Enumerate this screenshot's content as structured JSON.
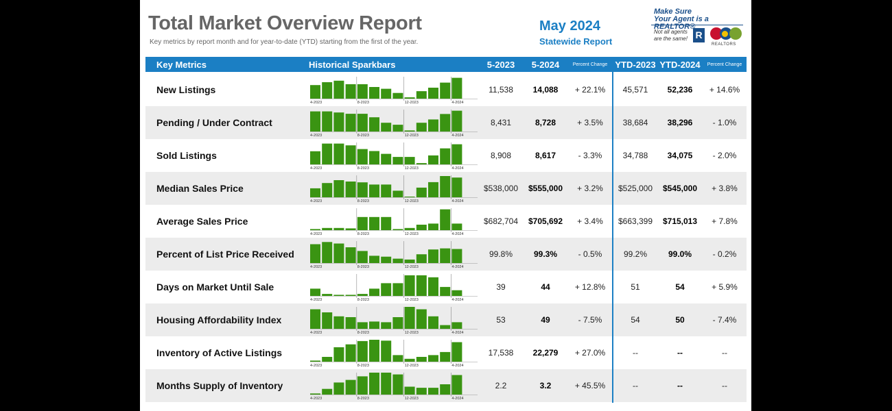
{
  "report": {
    "title": "Total Market Overview Report",
    "subtitle": "Key metrics by report month and for year-to-date (YTD) starting from the first of the year.",
    "month": "May 2024",
    "scope": "Statewide Report"
  },
  "logo": {
    "line1": "Make Sure",
    "line2": "Your Agent is a REALTOR®",
    "line3": "Not all agents",
    "line4": "are the same!",
    "badge": "R",
    "realtors": "REALTORS"
  },
  "header": {
    "metrics": "Key Metrics",
    "sparkbars": "Historical Sparkbars",
    "col1": "5-2023",
    "col2": "5-2024",
    "col3": "Percent Change",
    "col4": "YTD-2023",
    "col5": "YTD-2024",
    "col6": "Percent Change"
  },
  "spark_labels": [
    "4-2023",
    "8-2023",
    "12-2023",
    "4-2024"
  ],
  "colors": {
    "accent": "#1b7fc4",
    "bar": "#3a9412",
    "row_alt": "#ececec"
  },
  "rows": [
    {
      "name": "New Listings",
      "c1": "11,538",
      "c2": "14,088",
      "c3": "+ 22.1%",
      "c4": "45,571",
      "c5": "52,236",
      "c6": "+ 14.6%",
      "bars": [
        0.62,
        0.75,
        0.82,
        0.66,
        0.66,
        0.53,
        0.45,
        0.26,
        0.06,
        0.34,
        0.5,
        0.73,
        0.95
      ]
    },
    {
      "name": "Pending / Under Contract",
      "c1": "8,431",
      "c2": "8,728",
      "c3": "+ 3.5%",
      "c4": "38,684",
      "c5": "38,296",
      "c6": "- 1.0%",
      "bars": [
        0.92,
        0.92,
        0.87,
        0.81,
        0.81,
        0.65,
        0.4,
        0.31,
        0.05,
        0.4,
        0.55,
        0.8,
        0.95
      ]
    },
    {
      "name": "Sold Listings",
      "c1": "8,908",
      "c2": "8,617",
      "c3": "- 3.3%",
      "c4": "34,788",
      "c5": "34,075",
      "c6": "- 2.0%",
      "bars": [
        0.6,
        0.95,
        0.95,
        0.87,
        0.7,
        0.61,
        0.48,
        0.34,
        0.34,
        0.06,
        0.41,
        0.73,
        0.92
      ]
    },
    {
      "name": "Median Sales Price",
      "c1": "$538,000",
      "c2": "$555,000",
      "c3": "+ 3.2%",
      "c4": "$525,000",
      "c5": "$545,000",
      "c6": "+ 3.8%",
      "bars": [
        0.41,
        0.65,
        0.78,
        0.72,
        0.68,
        0.58,
        0.58,
        0.3,
        0.03,
        0.44,
        0.69,
        0.97,
        0.9
      ]
    },
    {
      "name": "Average Sales Price",
      "c1": "$682,704",
      "c2": "$705,692",
      "c3": "+ 3.4%",
      "c4": "$663,399",
      "c5": "$715,013",
      "c6": "+ 7.8%",
      "bars": [
        0.05,
        0.1,
        0.1,
        0.08,
        0.6,
        0.6,
        0.6,
        0.05,
        0.1,
        0.25,
        0.3,
        0.95,
        0.3
      ]
    },
    {
      "name": "Percent of List Price Received",
      "c1": "99.8%",
      "c2": "99.3%",
      "c3": "- 0.5%",
      "c4": "99.2%",
      "c5": "99.0%",
      "c6": "- 0.2%",
      "bars": [
        0.86,
        0.96,
        0.89,
        0.72,
        0.55,
        0.33,
        0.29,
        0.2,
        0.16,
        0.4,
        0.62,
        0.67,
        0.64
      ]
    },
    {
      "name": "Days on Market Until Sale",
      "c1": "39",
      "c2": "44",
      "c3": "+ 12.8%",
      "c4": "51",
      "c5": "54",
      "c6": "+ 5.9%",
      "bars": [
        0.33,
        0.09,
        0.05,
        0.05,
        0.09,
        0.33,
        0.58,
        0.58,
        0.94,
        0.94,
        0.85,
        0.41,
        0.26
      ]
    },
    {
      "name": "Housing Affordability Index",
      "c1": "53",
      "c2": "49",
      "c3": "- 7.5%",
      "c4": "54",
      "c5": "50",
      "c6": "- 7.4%",
      "bars": [
        0.89,
        0.75,
        0.57,
        0.53,
        0.3,
        0.33,
        0.3,
        0.53,
        1.0,
        0.89,
        0.57,
        0.17,
        0.3
      ]
    },
    {
      "name": "Inventory of Active Listings",
      "c1": "17,538",
      "c2": "22,279",
      "c3": "+ 27.0%",
      "c4": "--",
      "c5": "--",
      "c6": "--",
      "bars": [
        0.05,
        0.22,
        0.66,
        0.79,
        0.94,
        1.0,
        0.96,
        0.3,
        0.13,
        0.22,
        0.3,
        0.44,
        0.89
      ]
    },
    {
      "name": "Months Supply of Inventory",
      "c1": "2.2",
      "c2": "3.2",
      "c3": "+ 45.5%",
      "c4": "--",
      "c5": "--",
      "c6": "--",
      "bars": [
        0.05,
        0.26,
        0.55,
        0.67,
        0.83,
        1.0,
        1.0,
        0.92,
        0.36,
        0.31,
        0.31,
        0.47,
        0.89
      ]
    }
  ]
}
